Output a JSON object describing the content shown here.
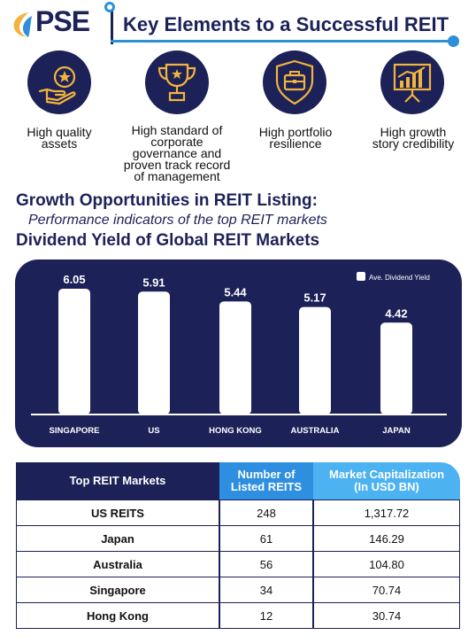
{
  "header": {
    "logo_text": "PSE",
    "title": "Key Elements to a Successful REIT"
  },
  "colors": {
    "navy": "#1c2158",
    "blue": "#2d8fd8",
    "light_blue": "#4cb2f2",
    "gold": "#f2b43c"
  },
  "elements": [
    {
      "icon": "hand-star-icon",
      "label_lines": [
        "High quality",
        "assets"
      ]
    },
    {
      "icon": "trophy-icon",
      "label_lines": [
        "High standard of",
        "corporate",
        "governance and",
        "proven track record",
        "of management"
      ]
    },
    {
      "icon": "briefcase-shield-icon",
      "label_lines": [
        "High portfolio",
        "resilience"
      ]
    },
    {
      "icon": "growth-chart-icon",
      "label_lines": [
        "High growth",
        "story credibility"
      ]
    }
  ],
  "growth": {
    "heading": "Growth Opportunities in REIT Listing:",
    "subheading": "Performance indicators of the top REIT markets",
    "dividend_heading": "Dividend Yield of Global REIT Markets"
  },
  "chart_data": {
    "type": "bar",
    "categories": [
      "SINGAPORE",
      "US",
      "HONG KONG",
      "AUSTRALIA",
      "JAPAN"
    ],
    "series": [
      {
        "name": "Ave. Dividend Yield",
        "values": [
          6.05,
          5.91,
          5.44,
          5.17,
          4.42
        ]
      }
    ],
    "ylim": [
      0,
      6.05
    ],
    "legend": "top-right",
    "grid": false,
    "bar_color": "#ffffff",
    "background": "#1c2158"
  },
  "table": {
    "headers": [
      "Top REIT Markets",
      "Number of Listed REITS",
      "Market Capitalization (In USD BN)"
    ],
    "header_lines": [
      [
        "Top REIT Markets"
      ],
      [
        "Number of",
        "Listed REITS"
      ],
      [
        "Market Capitalization",
        "(In USD BN)"
      ]
    ],
    "rows": [
      {
        "market": "US REITS",
        "count": "248",
        "cap": "1,317.72"
      },
      {
        "market": "Japan",
        "count": "61",
        "cap": "146.29"
      },
      {
        "market": "Australia",
        "count": "56",
        "cap": "104.80"
      },
      {
        "market": "Singapore",
        "count": "34",
        "cap": "70.74"
      },
      {
        "market": "Hong Kong",
        "count": "12",
        "cap": "30.74"
      }
    ]
  }
}
